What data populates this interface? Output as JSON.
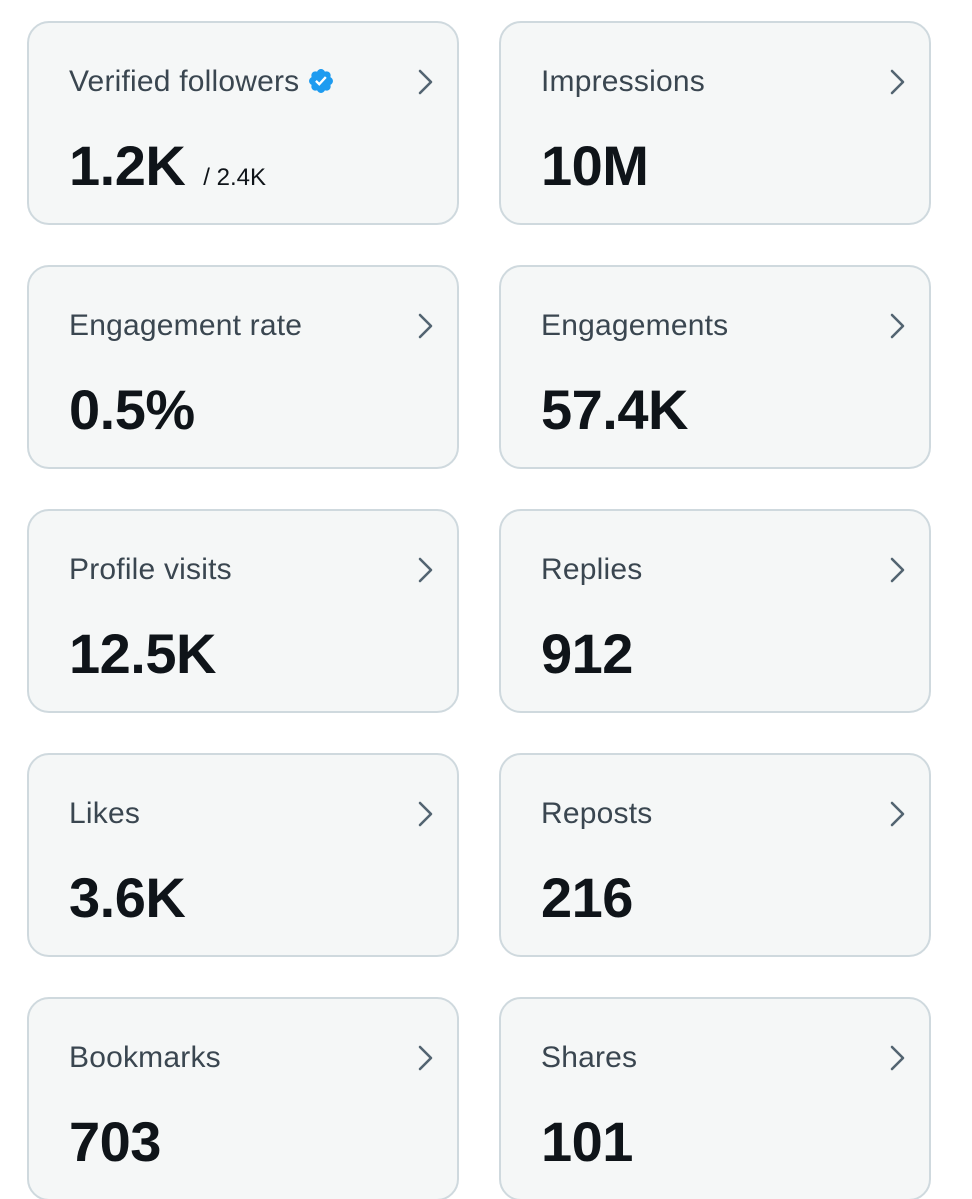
{
  "accent_color": "#1d9bf0",
  "cards": [
    {
      "title": "Verified followers",
      "value": "1.2K",
      "sub": "/ 2.4K",
      "icon": "verified-badge-icon"
    },
    {
      "title": "Impressions",
      "value": "10M"
    },
    {
      "title": "Engagement rate",
      "value": "0.5%"
    },
    {
      "title": "Engagements",
      "value": "57.4K"
    },
    {
      "title": "Profile visits",
      "value": "12.5K"
    },
    {
      "title": "Replies",
      "value": "912"
    },
    {
      "title": "Likes",
      "value": "3.6K"
    },
    {
      "title": "Reposts",
      "value": "216"
    },
    {
      "title": "Bookmarks",
      "value": "703"
    },
    {
      "title": "Shares",
      "value": "101"
    }
  ]
}
